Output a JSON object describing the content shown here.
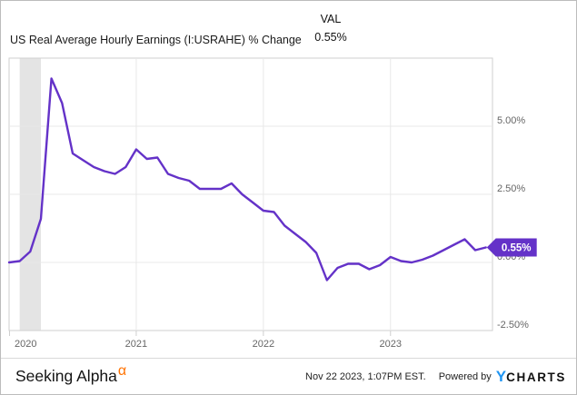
{
  "header": {
    "title": "US Real Average Hourly Earnings (I:USRAHE) % Change",
    "val_label": "VAL",
    "val_value": "0.55%"
  },
  "chart_data": {
    "type": "line",
    "title": "US Real Average Hourly Earnings (I:USRAHE) % Change",
    "series_name": "US Real Average Hourly Earnings % Change",
    "x": [
      "2020-01",
      "2020-02",
      "2020-03",
      "2020-04",
      "2020-05",
      "2020-06",
      "2020-07",
      "2020-08",
      "2020-09",
      "2020-10",
      "2020-11",
      "2020-12",
      "2021-01",
      "2021-02",
      "2021-03",
      "2021-04",
      "2021-05",
      "2021-06",
      "2021-07",
      "2021-08",
      "2021-09",
      "2021-10",
      "2021-11",
      "2021-12",
      "2022-01",
      "2022-02",
      "2022-03",
      "2022-04",
      "2022-05",
      "2022-06",
      "2022-07",
      "2022-08",
      "2022-09",
      "2022-10",
      "2022-11",
      "2022-12",
      "2023-01",
      "2023-02",
      "2023-03",
      "2023-04",
      "2023-05",
      "2023-06",
      "2023-07",
      "2023-08",
      "2023-09",
      "2023-10"
    ],
    "values": [
      0.0,
      0.05,
      0.4,
      1.6,
      6.75,
      5.85,
      4.0,
      3.75,
      3.5,
      3.35,
      3.25,
      3.5,
      4.15,
      3.8,
      3.85,
      3.25,
      3.1,
      3.0,
      2.7,
      2.7,
      2.7,
      2.9,
      2.5,
      2.2,
      1.9,
      1.85,
      1.35,
      1.05,
      0.75,
      0.35,
      -0.65,
      -0.2,
      -0.05,
      -0.05,
      -0.25,
      -0.1,
      0.2,
      0.05,
      0.0,
      0.1,
      0.25,
      0.45,
      0.65,
      0.85,
      0.45,
      0.55
    ],
    "last_value_label": "0.55%",
    "ylim": [
      -2.5,
      7.5
    ],
    "y_gridline_values": [
      5.0,
      2.5,
      0.0
    ],
    "y_tick_labels": [
      "5.00%",
      "2.50%",
      "0.00%",
      "-2.50%"
    ],
    "y_tick_values": [
      5.0,
      2.5,
      0.0,
      -2.5
    ],
    "x_tick_labels": [
      "2020",
      "2021",
      "2022",
      "2023"
    ],
    "x_tick_month_indices": [
      0,
      12,
      24,
      36
    ],
    "grid": true,
    "legend_position": "none",
    "shaded_band": {
      "from": "2020-02",
      "to": "2020-04"
    },
    "line_color": "#6432c8",
    "badge_color": "#6432c8",
    "band_color": "#e4e4e4"
  },
  "footer": {
    "brand": "Seeking Alpha",
    "brand_superscript": "α",
    "timestamp": "Nov 22 2023, 1:07PM EST.",
    "powered_by": "Powered by",
    "ycharts_y": "Y",
    "ycharts_rest": "CHARTS"
  },
  "colors": {
    "accent_purple": "#6432c8",
    "alpha_orange": "#ff7200",
    "ycharts_blue": "#2196f3",
    "axis_text": "#666666",
    "gridline": "#e8e8e8",
    "plot_border": "#cfcfcf"
  }
}
